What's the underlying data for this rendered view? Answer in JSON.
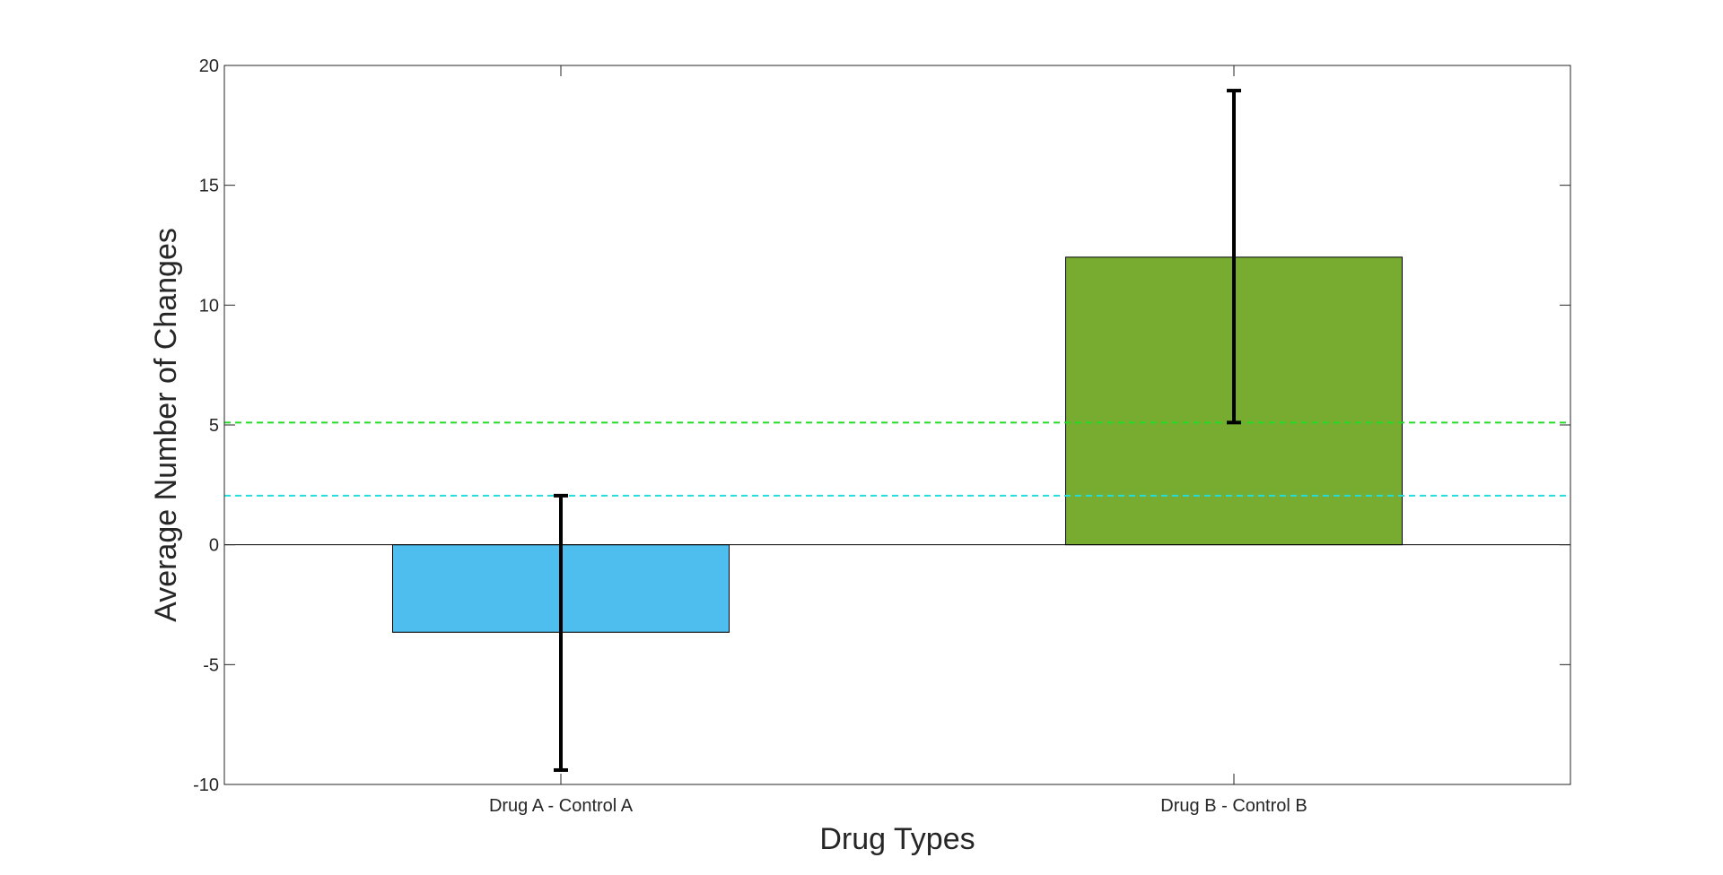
{
  "chart_data": {
    "type": "bar",
    "title": "",
    "xlabel": "Drug Types",
    "ylabel": "Average Number of Changes",
    "ylim": [
      -10,
      20
    ],
    "yticks": [
      -10,
      -5,
      0,
      5,
      10,
      15,
      20
    ],
    "categories": [
      "Drug A - Control A",
      "Drug B - Control B"
    ],
    "values": [
      -3.65,
      12.0
    ],
    "bar_colors": [
      "#4DBEEE",
      "#77AC30"
    ],
    "error_bars": [
      {
        "low": -9.4,
        "high": 2.05
      },
      {
        "low": 5.1,
        "high": 18.95
      }
    ],
    "reference_lines": [
      {
        "y": 5.1,
        "color": "#22DD22",
        "style": "dashed"
      },
      {
        "y": 2.05,
        "color": "#22DDDD",
        "style": "dashed"
      }
    ],
    "grid": false,
    "box": true
  }
}
